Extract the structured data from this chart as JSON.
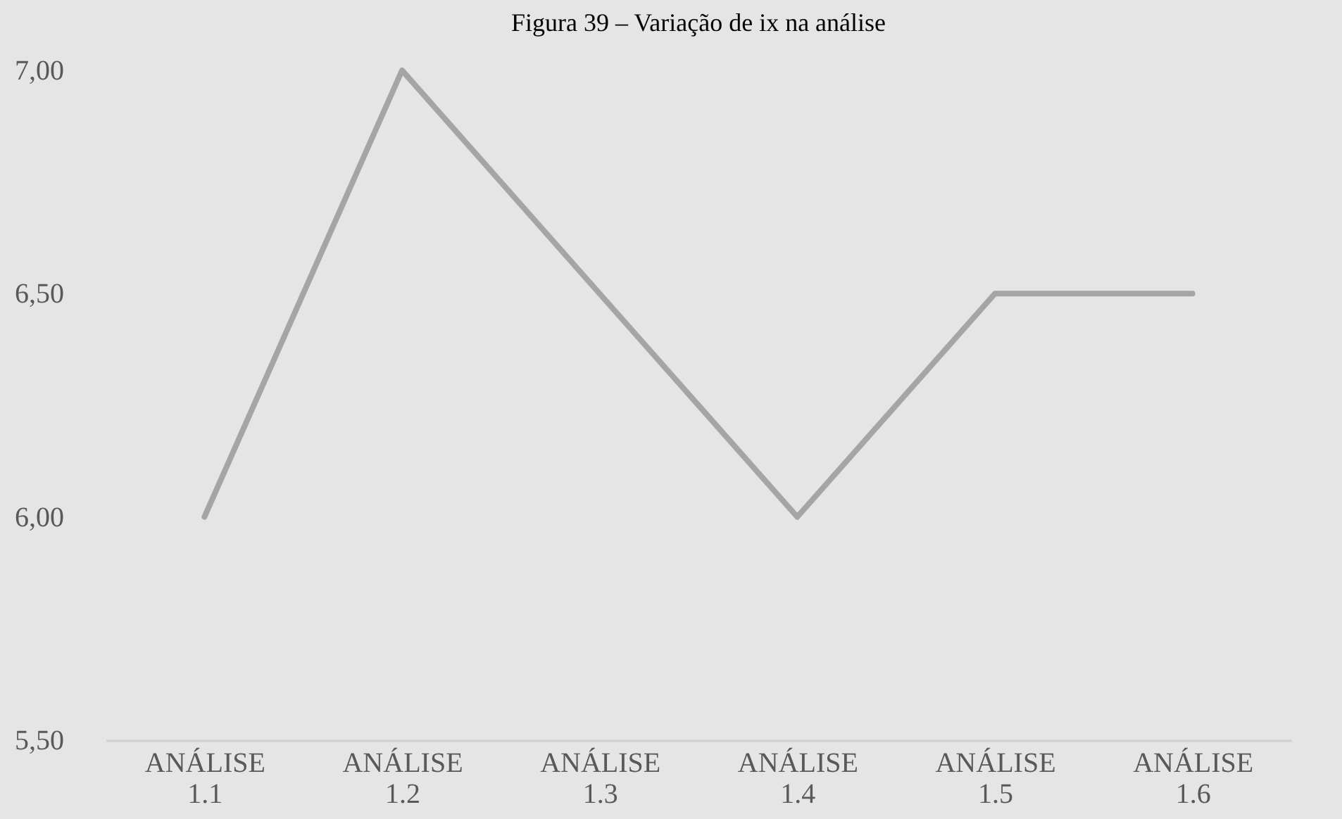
{
  "chart_data": {
    "type": "line",
    "title": "Figura 39 – Variação de ix na análise",
    "categories": [
      "ANÁLISE 1.1",
      "ANÁLISE 1.2",
      "ANÁLISE 1.3",
      "ANÁLISE 1.4",
      "ANÁLISE 1.5",
      "ANÁLISE 1.6"
    ],
    "series": [
      {
        "color": "#a5a5a5",
        "values": [
          6.0,
          7.0,
          6.5,
          6.0,
          6.5,
          6.5
        ]
      }
    ],
    "ylim": [
      5.5,
      7.0
    ],
    "yticks": [
      {
        "value": 5.5,
        "label": "5,50"
      },
      {
        "value": 6.0,
        "label": "6,00"
      },
      {
        "value": 6.5,
        "label": "6,50"
      },
      {
        "value": 7.0,
        "label": "7,00"
      }
    ],
    "grid": false,
    "marker": "none",
    "line_style": "solid"
  }
}
